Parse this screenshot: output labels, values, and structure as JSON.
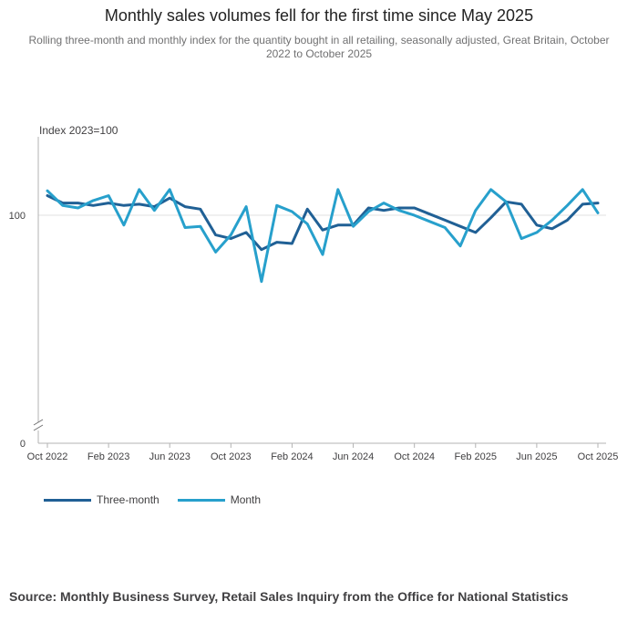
{
  "title": "Monthly sales volumes fell for the first time since May 2025",
  "subtitle": "Rolling three-month and monthly index for the quantity bought in all retailing, seasonally adjusted, Great Britain, October 2022 to October 2025",
  "source": "Source: Monthly Business Survey, Retail Sales Inquiry from the Office for National Statistics",
  "chart_data": {
    "type": "line",
    "title": "Monthly sales volumes fell for the first time since May 2025",
    "ylabel": "Index 2023=100",
    "xlabel": "",
    "yticks": [
      "0",
      "100"
    ],
    "axis_break": true,
    "ylim_display": [
      91.3,
      103.2
    ],
    "x_tick_labels": [
      "Oct 2022",
      "Feb 2023",
      "Jun 2023",
      "Oct 2023",
      "Feb 2024",
      "Jun 2024",
      "Oct 2024",
      "Feb 2025",
      "Jun 2025",
      "Oct 2025"
    ],
    "x_tick_index": [
      0,
      4,
      8,
      12,
      16,
      20,
      24,
      28,
      32,
      36
    ],
    "categories": [
      "Oct 2022",
      "Nov 2022",
      "Dec 2022",
      "Jan 2023",
      "Feb 2023",
      "Mar 2023",
      "Apr 2023",
      "May 2023",
      "Jun 2023",
      "Jul 2023",
      "Aug 2023",
      "Sep 2023",
      "Oct 2023",
      "Nov 2023",
      "Dec 2023",
      "Jan 2024",
      "Feb 2024",
      "Mar 2024",
      "Apr 2024",
      "May 2024",
      "Jun 2024",
      "Jul 2024",
      "Aug 2024",
      "Sep 2024",
      "Oct 2024",
      "Nov 2024",
      "Dec 2024",
      "Jan 2025",
      "Feb 2025",
      "Mar 2025",
      "Apr 2025",
      "May 2025",
      "Jun 2025",
      "Jul 2025",
      "Aug 2025",
      "Sep 2025",
      "Oct 2025"
    ],
    "series": [
      {
        "name": "Three-month",
        "color": "#206095",
        "values": [
          100.8,
          100.5,
          100.5,
          100.4,
          100.5,
          100.4,
          100.45,
          100.35,
          100.7,
          100.35,
          100.25,
          99.2,
          99.05,
          99.3,
          98.6,
          98.9,
          98.85,
          100.25,
          99.4,
          99.6,
          99.6,
          100.3,
          100.2,
          100.3,
          100.3,
          100.05,
          99.8,
          99.55,
          99.3,
          99.9,
          100.55,
          100.45,
          99.6,
          99.45,
          99.8,
          100.45,
          100.5
        ]
      },
      {
        "name": "Month",
        "color": "#27a0cc",
        "values": [
          101.0,
          100.4,
          100.3,
          100.6,
          100.8,
          99.6,
          101.05,
          100.2,
          101.05,
          99.5,
          99.55,
          98.5,
          99.2,
          100.35,
          97.3,
          100.4,
          100.15,
          99.65,
          98.4,
          101.05,
          99.55,
          100.15,
          100.5,
          100.2,
          100.0,
          99.75,
          99.5,
          98.75,
          100.2,
          101.05,
          100.55,
          99.05,
          99.3,
          99.8,
          100.4,
          101.05,
          100.1
        ]
      }
    ]
  }
}
